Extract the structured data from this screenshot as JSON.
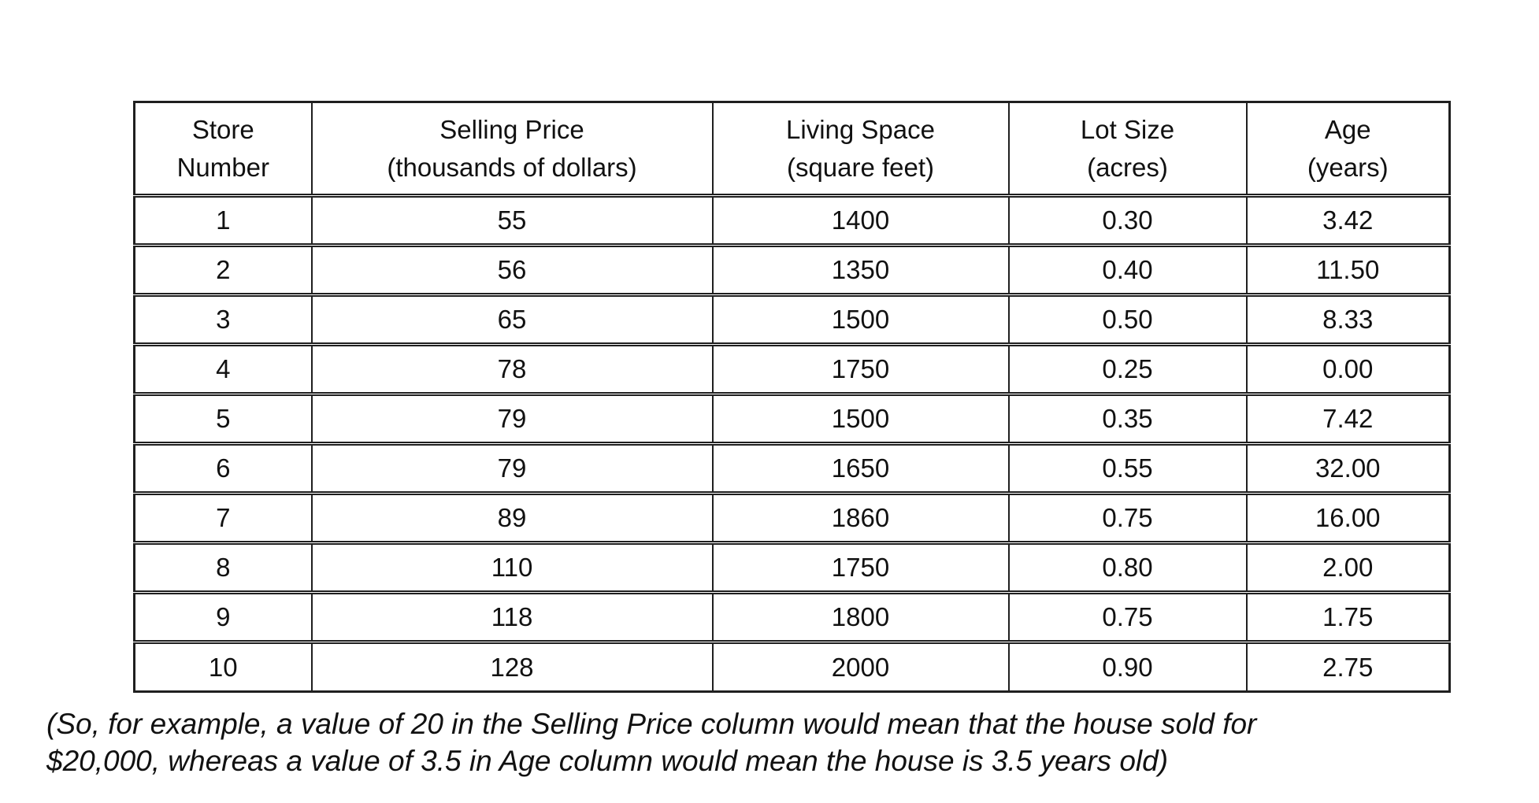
{
  "table": {
    "columns": [
      {
        "key": "store-number",
        "line1": "Store",
        "line2": "Number"
      },
      {
        "key": "selling-price",
        "line1": "Selling Price",
        "line2": "(thousands of dollars)"
      },
      {
        "key": "living-space",
        "line1": "Living Space",
        "line2": "(square feet)"
      },
      {
        "key": "lot-size",
        "line1": "Lot Size",
        "line2": "(acres)"
      },
      {
        "key": "age",
        "line1": "Age",
        "line2": "(years)"
      }
    ],
    "rows": [
      [
        "1",
        "55",
        "1400",
        "0.30",
        "3.42"
      ],
      [
        "2",
        "56",
        "1350",
        "0.40",
        "11.50"
      ],
      [
        "3",
        "65",
        "1500",
        "0.50",
        "8.33"
      ],
      [
        "4",
        "78",
        "1750",
        "0.25",
        "0.00"
      ],
      [
        "5",
        "79",
        "1500",
        "0.35",
        "7.42"
      ],
      [
        "6",
        "79",
        "1650",
        "0.55",
        "32.00"
      ],
      [
        "7",
        "89",
        "1860",
        "0.75",
        "16.00"
      ],
      [
        "8",
        "110",
        "1750",
        "0.80",
        "2.00"
      ],
      [
        "9",
        "118",
        "1800",
        "0.75",
        "1.75"
      ],
      [
        "10",
        "128",
        "2000",
        "0.90",
        "2.75"
      ]
    ]
  },
  "footnote": {
    "lines": [
      "(So, for example, a value of 20 in the Selling Price column would mean that the house sold for",
      "$20,000, whereas a value of 3.5 in Age column would mean the house is 3.5 years old)"
    ]
  },
  "chart_data": {
    "type": "table",
    "columns": [
      "Store Number",
      "Selling Price (thousands of dollars)",
      "Living Space (square feet)",
      "Lot Size (acres)",
      "Age (years)"
    ],
    "rows": [
      [
        1,
        55,
        1400,
        0.3,
        3.42
      ],
      [
        2,
        56,
        1350,
        0.4,
        11.5
      ],
      [
        3,
        65,
        1500,
        0.5,
        8.33
      ],
      [
        4,
        78,
        1750,
        0.25,
        0.0
      ],
      [
        5,
        79,
        1500,
        0.35,
        7.42
      ],
      [
        6,
        79,
        1650,
        0.55,
        32.0
      ],
      [
        7,
        89,
        1860,
        0.75,
        16.0
      ],
      [
        8,
        110,
        1750,
        0.8,
        2.0
      ],
      [
        9,
        118,
        1800,
        0.75,
        1.75
      ],
      [
        10,
        128,
        2000,
        0.9,
        2.75
      ]
    ]
  }
}
